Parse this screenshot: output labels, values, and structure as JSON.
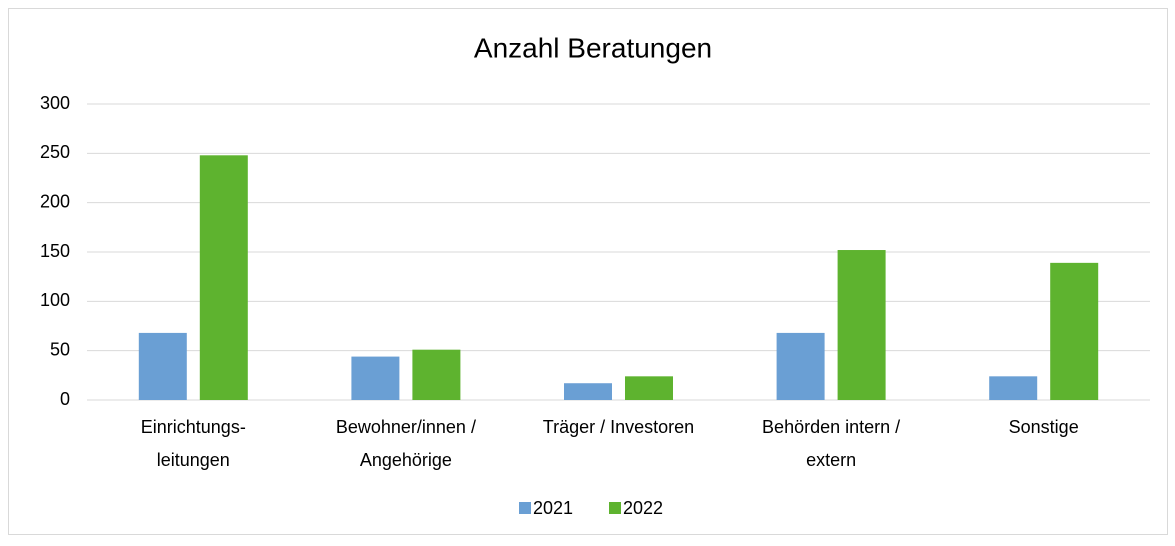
{
  "chart_data": {
    "type": "bar",
    "title": "Anzahl Beratungen",
    "categories": [
      "Einrichtungs-\nleitungen",
      "Bewohner/innen /\nAngehörige",
      "Träger / Investoren",
      "Behörden intern /\nextern",
      "Sonstige"
    ],
    "series": [
      {
        "name": "2021",
        "color": "#6a9fd4",
        "values": [
          68,
          44,
          17,
          68,
          24
        ]
      },
      {
        "name": "2022",
        "color": "#5eb32f",
        "values": [
          248,
          51,
          24,
          152,
          139
        ]
      }
    ],
    "ylim": [
      0,
      300
    ],
    "yticks": [
      0,
      50,
      100,
      150,
      200,
      250,
      300
    ],
    "grid": true,
    "legend": "bottom"
  }
}
